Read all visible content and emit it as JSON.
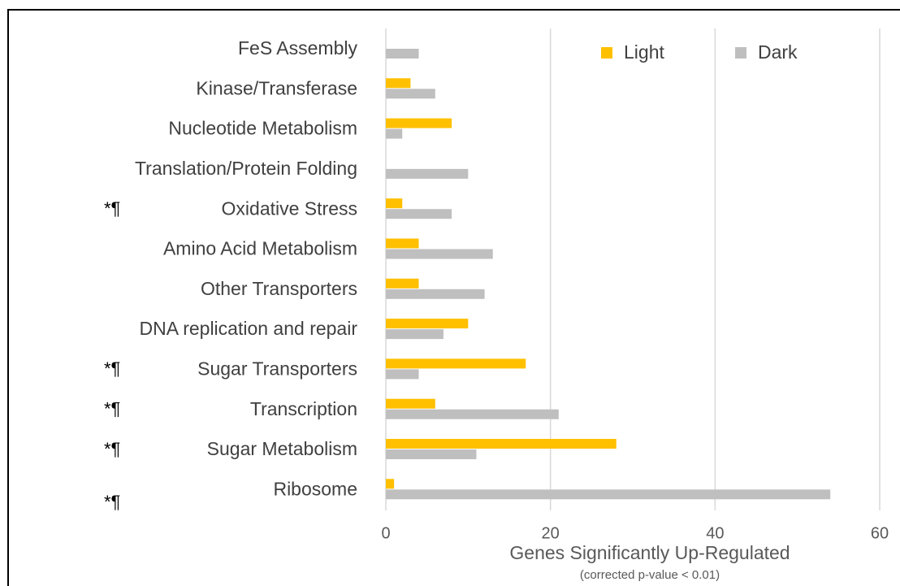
{
  "chart_data": {
    "type": "bar",
    "orientation": "horizontal",
    "categories": [
      "FeS Assembly",
      "Kinase/Transferase",
      "Nucleotide Metabolism",
      "Translation/Protein Folding",
      "Oxidative Stress",
      "Amino Acid Metabolism",
      "Other Transporters",
      "DNA replication and repair",
      "Sugar Transporters",
      "Transcription",
      "Sugar Metabolism",
      "Ribosome"
    ],
    "series": [
      {
        "name": "Light",
        "color": "#ffc000",
        "values": [
          0,
          3,
          8,
          0,
          2,
          4,
          4,
          10,
          17,
          6,
          28,
          1
        ]
      },
      {
        "name": "Dark",
        "color": "#bfbfbf",
        "values": [
          4,
          6,
          2,
          10,
          8,
          13,
          12,
          7,
          4,
          21,
          11,
          54
        ]
      }
    ],
    "xlim": [
      0,
      60
    ],
    "xticks": [
      0,
      20,
      40,
      60
    ],
    "grid": true,
    "legend": "top-right",
    "xlabel": "Genes Significantly Up-Regulated",
    "xlabel_note": "(corrected p-value < 0.01)",
    "annotations": [
      {
        "text": "*¶",
        "category": "Oxidative Stress"
      },
      {
        "text": "*¶",
        "category": "Sugar Transporters"
      },
      {
        "text": "*¶",
        "category": "Transcription"
      },
      {
        "text": "*¶",
        "category": "Sugar Metabolism"
      },
      {
        "text": "*¶",
        "category": "Ribosome"
      }
    ]
  }
}
